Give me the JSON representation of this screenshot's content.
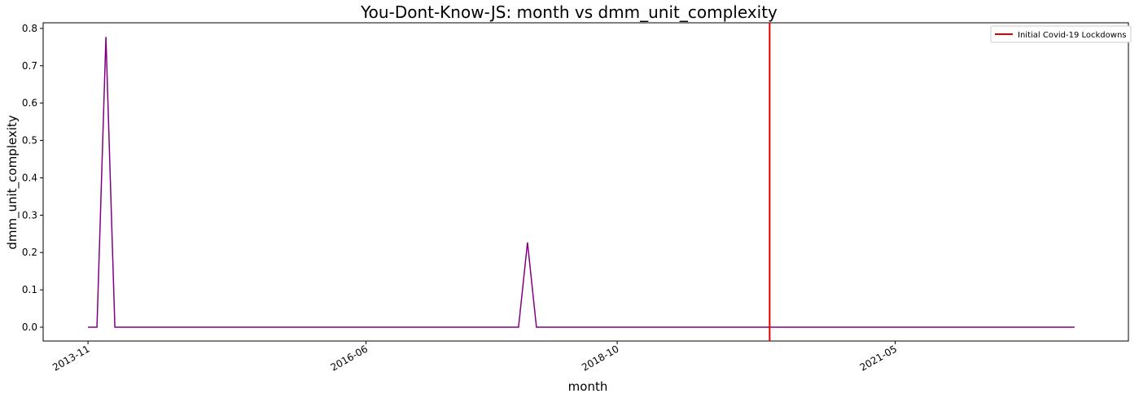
{
  "chart_data": {
    "type": "line",
    "title": "You-Dont-Know-JS: month vs dmm_unit_complexity",
    "xlabel": "month",
    "ylabel": "dmm_unit_complexity",
    "x_tick_labels": [
      "2013-11",
      "2016-06",
      "2018-10",
      "2021-05"
    ],
    "y_ticks": [
      0.0,
      0.1,
      0.2,
      0.3,
      0.4,
      0.5,
      0.6,
      0.7,
      0.8
    ],
    "y_tick_labels": [
      "0.0",
      "0.1",
      "0.2",
      "0.3",
      "0.4",
      "0.5",
      "0.6",
      "0.7",
      "0.8"
    ],
    "ylim": [
      -0.037,
      0.815
    ],
    "xlim": [
      "2013-06",
      "2023-07"
    ],
    "series": [
      {
        "color": "#800080",
        "points": [
          {
            "x": "2013-11",
            "y": 0.0
          },
          {
            "x": "2013-12",
            "y": 0.0
          },
          {
            "x": "2014-01",
            "y": 0.777
          },
          {
            "x": "2014-02",
            "y": 0.0
          },
          {
            "x": "2017-11",
            "y": 0.0
          },
          {
            "x": "2017-12",
            "y": 0.227
          },
          {
            "x": "2018-01",
            "y": 0.0
          },
          {
            "x": "2023-01",
            "y": 0.0
          }
        ]
      }
    ],
    "vline": {
      "x": "2020-03",
      "color": "#e00000",
      "label": "Initial Covid-19 Lockdowns"
    },
    "legend": {
      "position": "top-right",
      "entries": [
        "Initial Covid-19 Lockdowns"
      ]
    },
    "grid": false
  }
}
